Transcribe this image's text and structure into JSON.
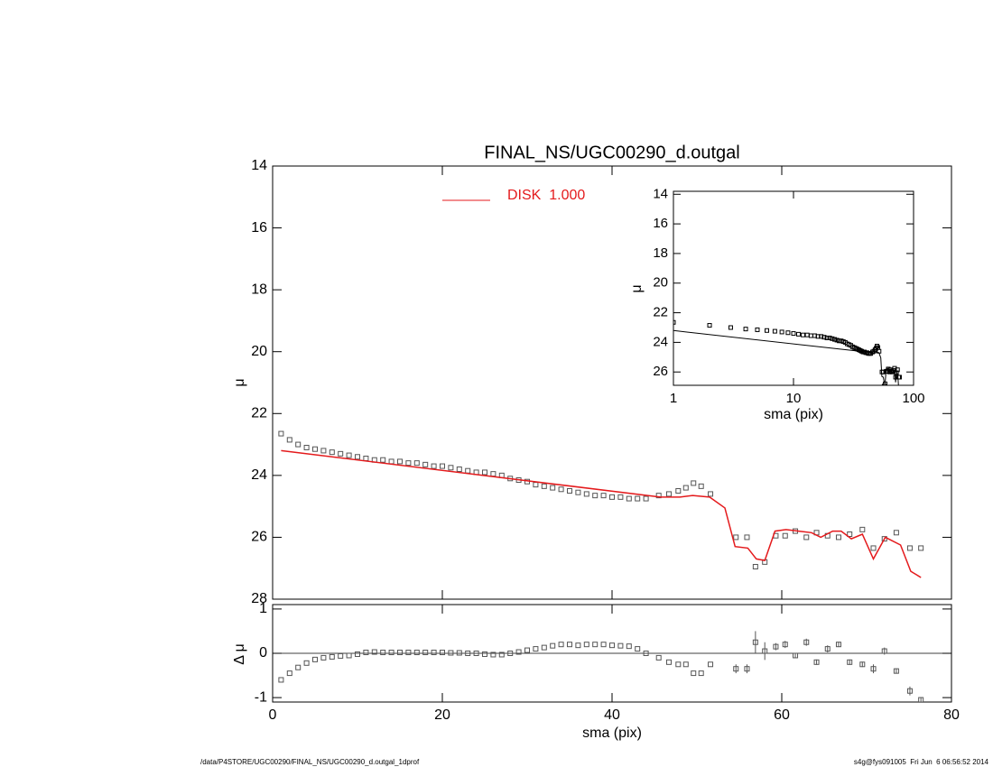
{
  "chart_data": [
    {
      "type": "scatter",
      "title": "FINAL_NS/UGC00290_d.outgal",
      "ylabel": "μ",
      "xlim": [
        0,
        80
      ],
      "xticks": [
        0,
        20,
        40,
        60,
        80
      ],
      "ylim": [
        28,
        14
      ],
      "yticks": [
        14,
        16,
        18,
        20,
        22,
        24,
        26,
        28
      ],
      "legend": "upper center",
      "series": [
        {
          "color": "#555555",
          "x": [
            1,
            2,
            3,
            4,
            5,
            6,
            7,
            8,
            9,
            10,
            11,
            12,
            13,
            14,
            15,
            16,
            17,
            18,
            19,
            20,
            21,
            22,
            23,
            24,
            25,
            26,
            27,
            28,
            29,
            30,
            31,
            32,
            33,
            34,
            35,
            36,
            37,
            38,
            39,
            40,
            41,
            42,
            43,
            44,
            45.5,
            46.7,
            47.8,
            48.7,
            49.6,
            50.5,
            51.6,
            54.6,
            55.9,
            56.9,
            58.0,
            59.3,
            60.4,
            61.6,
            62.9,
            64.1,
            65.4,
            66.7,
            68.0,
            69.5,
            70.8,
            72.1,
            73.5,
            75.1,
            76.4
          ],
          "values": [
            22.65,
            22.85,
            23.0,
            23.1,
            23.15,
            23.2,
            23.25,
            23.3,
            23.35,
            23.4,
            23.45,
            23.5,
            23.5,
            23.55,
            23.55,
            23.6,
            23.6,
            23.65,
            23.7,
            23.7,
            23.75,
            23.8,
            23.85,
            23.9,
            23.9,
            23.95,
            24.0,
            24.1,
            24.15,
            24.2,
            24.3,
            24.35,
            24.4,
            24.45,
            24.5,
            24.55,
            24.6,
            24.65,
            24.65,
            24.7,
            24.7,
            24.75,
            24.75,
            24.75,
            24.65,
            24.6,
            24.5,
            24.4,
            24.25,
            24.35,
            24.6,
            26.0,
            26.0,
            26.95,
            26.8,
            25.95,
            25.95,
            25.8,
            26.0,
            25.85,
            25.95,
            26.0,
            25.9,
            25.75,
            26.35,
            26.05,
            25.85,
            26.35,
            26.35
          ]
        },
        {
          "name": "DISK  1.000",
          "color": "#e41a1c",
          "x": [
            1,
            45.7,
            48,
            49.5,
            51.5,
            53.3,
            54.5,
            56,
            57,
            58,
            59.2,
            60.5,
            62,
            63.5,
            64.6,
            66,
            67,
            68.2,
            69.5,
            70.8,
            72.2,
            74,
            75.2,
            76.4
          ],
          "values": [
            23.2,
            24.7,
            24.7,
            24.65,
            24.7,
            25.05,
            26.3,
            26.35,
            26.7,
            26.75,
            25.8,
            25.75,
            25.8,
            25.85,
            26.0,
            25.8,
            25.8,
            26.05,
            25.9,
            26.7,
            26.0,
            26.25,
            27.1,
            27.3
          ]
        }
      ]
    },
    {
      "type": "scatter",
      "xlabel": "sma (pix)",
      "ylabel": "Δ μ",
      "xlim": [
        0,
        80
      ],
      "xticks": [
        0,
        20,
        40,
        60,
        80
      ],
      "ylim": [
        -1.1,
        1.1
      ],
      "yticks": [
        -1,
        0,
        1
      ],
      "zero_line": true,
      "series": [
        {
          "color": "#555555",
          "x": [
            1,
            2,
            3,
            4,
            5,
            6,
            7,
            8,
            9,
            10,
            11,
            12,
            13,
            14,
            15,
            16,
            17,
            18,
            19,
            20,
            21,
            22,
            23,
            24,
            25,
            26,
            27,
            28,
            29,
            30,
            31,
            32,
            33,
            34,
            35,
            36,
            37,
            38,
            39,
            40,
            41,
            42,
            43,
            44,
            45.5,
            46.7,
            47.8,
            48.7,
            49.6,
            50.5,
            51.6,
            54.6,
            55.9,
            56.9,
            58.0,
            59.3,
            60.4,
            61.6,
            62.9,
            64.1,
            65.4,
            66.7,
            68.0,
            69.5,
            70.8,
            72.1,
            73.5,
            75.1,
            76.4
          ],
          "values": [
            -0.6,
            -0.45,
            -0.32,
            -0.22,
            -0.14,
            -0.1,
            -0.08,
            -0.06,
            -0.05,
            -0.02,
            0.02,
            0.03,
            0.02,
            0.02,
            0.02,
            0.02,
            0.02,
            0.02,
            0.02,
            0.02,
            0.01,
            0.01,
            0.0,
            0.0,
            -0.02,
            -0.03,
            -0.03,
            0.0,
            0.03,
            0.07,
            0.1,
            0.13,
            0.17,
            0.2,
            0.2,
            0.18,
            0.2,
            0.2,
            0.2,
            0.18,
            0.17,
            0.16,
            0.1,
            0.0,
            -0.1,
            -0.2,
            -0.25,
            -0.25,
            -0.45,
            -0.45,
            -0.25,
            -0.35,
            -0.35,
            0.25,
            0.05,
            0.15,
            0.2,
            -0.05,
            0.25,
            -0.2,
            0.1,
            0.2,
            -0.2,
            -0.25,
            -0.35,
            0.05,
            -0.4,
            -0.85,
            -1.05
          ],
          "errors": [
            null,
            null,
            null,
            null,
            null,
            null,
            null,
            null,
            null,
            null,
            null,
            null,
            null,
            null,
            null,
            null,
            null,
            null,
            null,
            null,
            null,
            null,
            null,
            null,
            null,
            null,
            null,
            null,
            null,
            null,
            null,
            null,
            null,
            null,
            null,
            null,
            null,
            null,
            null,
            null,
            null,
            null,
            null,
            null,
            null,
            null,
            null,
            null,
            null,
            null,
            null,
            0.1,
            0.1,
            0.25,
            0.2,
            0.08,
            0.08,
            0.06,
            0.08,
            0.06,
            0.08,
            0.06,
            0.06,
            0.06,
            0.1,
            0.08,
            0.06,
            0.1,
            0.06
          ]
        }
      ]
    },
    {
      "type": "scatter",
      "xlabel": "sma (pix)",
      "ylabel": "μ",
      "log_x": true,
      "line_color": "#000000",
      "xlim": [
        1,
        100
      ],
      "xticks": [
        1,
        10,
        100
      ],
      "ylim": [
        26.9,
        13.8
      ],
      "yticks": [
        14,
        16,
        18,
        20,
        22,
        24,
        26
      ]
    }
  ],
  "footer": {
    "path": "/data/P4STORE/UGC00290/FINAL_NS/UGC00290_d.outgal_1dprof",
    "stamp": "s4g@fys091005  Fri Jun  6 06:56:52 2014"
  }
}
